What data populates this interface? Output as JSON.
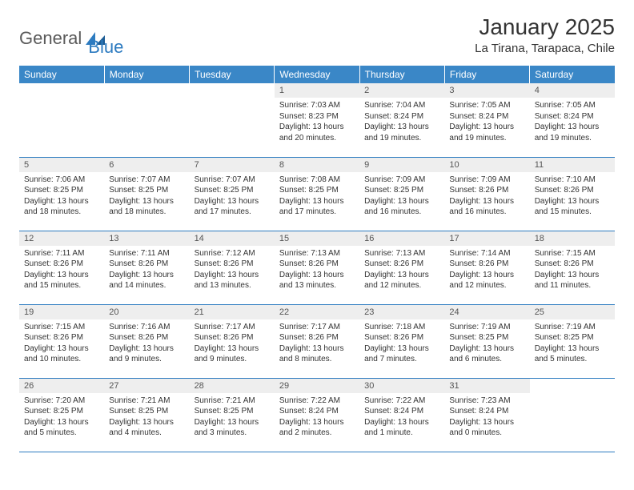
{
  "brand": {
    "general": "General",
    "blue": "Blue"
  },
  "title": "January 2025",
  "location": "La Tirana, Tarapaca, Chile",
  "colors": {
    "header_bg": "#3a87c7",
    "header_text": "#ffffff",
    "daynum_bg": "#eeeeee",
    "row_border": "#2d7bc0",
    "logo_gray": "#5a5a5a",
    "logo_blue": "#2d7bc0",
    "page_bg": "#ffffff",
    "text": "#333333"
  },
  "weekdays": [
    "Sunday",
    "Monday",
    "Tuesday",
    "Wednesday",
    "Thursday",
    "Friday",
    "Saturday"
  ],
  "weeks": [
    [
      null,
      null,
      null,
      {
        "n": "1",
        "sunrise": "7:03 AM",
        "sunset": "8:23 PM",
        "daylight": "13 hours and 20 minutes."
      },
      {
        "n": "2",
        "sunrise": "7:04 AM",
        "sunset": "8:24 PM",
        "daylight": "13 hours and 19 minutes."
      },
      {
        "n": "3",
        "sunrise": "7:05 AM",
        "sunset": "8:24 PM",
        "daylight": "13 hours and 19 minutes."
      },
      {
        "n": "4",
        "sunrise": "7:05 AM",
        "sunset": "8:24 PM",
        "daylight": "13 hours and 19 minutes."
      }
    ],
    [
      {
        "n": "5",
        "sunrise": "7:06 AM",
        "sunset": "8:25 PM",
        "daylight": "13 hours and 18 minutes."
      },
      {
        "n": "6",
        "sunrise": "7:07 AM",
        "sunset": "8:25 PM",
        "daylight": "13 hours and 18 minutes."
      },
      {
        "n": "7",
        "sunrise": "7:07 AM",
        "sunset": "8:25 PM",
        "daylight": "13 hours and 17 minutes."
      },
      {
        "n": "8",
        "sunrise": "7:08 AM",
        "sunset": "8:25 PM",
        "daylight": "13 hours and 17 minutes."
      },
      {
        "n": "9",
        "sunrise": "7:09 AM",
        "sunset": "8:25 PM",
        "daylight": "13 hours and 16 minutes."
      },
      {
        "n": "10",
        "sunrise": "7:09 AM",
        "sunset": "8:26 PM",
        "daylight": "13 hours and 16 minutes."
      },
      {
        "n": "11",
        "sunrise": "7:10 AM",
        "sunset": "8:26 PM",
        "daylight": "13 hours and 15 minutes."
      }
    ],
    [
      {
        "n": "12",
        "sunrise": "7:11 AM",
        "sunset": "8:26 PM",
        "daylight": "13 hours and 15 minutes."
      },
      {
        "n": "13",
        "sunrise": "7:11 AM",
        "sunset": "8:26 PM",
        "daylight": "13 hours and 14 minutes."
      },
      {
        "n": "14",
        "sunrise": "7:12 AM",
        "sunset": "8:26 PM",
        "daylight": "13 hours and 13 minutes."
      },
      {
        "n": "15",
        "sunrise": "7:13 AM",
        "sunset": "8:26 PM",
        "daylight": "13 hours and 13 minutes."
      },
      {
        "n": "16",
        "sunrise": "7:13 AM",
        "sunset": "8:26 PM",
        "daylight": "13 hours and 12 minutes."
      },
      {
        "n": "17",
        "sunrise": "7:14 AM",
        "sunset": "8:26 PM",
        "daylight": "13 hours and 12 minutes."
      },
      {
        "n": "18",
        "sunrise": "7:15 AM",
        "sunset": "8:26 PM",
        "daylight": "13 hours and 11 minutes."
      }
    ],
    [
      {
        "n": "19",
        "sunrise": "7:15 AM",
        "sunset": "8:26 PM",
        "daylight": "13 hours and 10 minutes."
      },
      {
        "n": "20",
        "sunrise": "7:16 AM",
        "sunset": "8:26 PM",
        "daylight": "13 hours and 9 minutes."
      },
      {
        "n": "21",
        "sunrise": "7:17 AM",
        "sunset": "8:26 PM",
        "daylight": "13 hours and 9 minutes."
      },
      {
        "n": "22",
        "sunrise": "7:17 AM",
        "sunset": "8:26 PM",
        "daylight": "13 hours and 8 minutes."
      },
      {
        "n": "23",
        "sunrise": "7:18 AM",
        "sunset": "8:26 PM",
        "daylight": "13 hours and 7 minutes."
      },
      {
        "n": "24",
        "sunrise": "7:19 AM",
        "sunset": "8:25 PM",
        "daylight": "13 hours and 6 minutes."
      },
      {
        "n": "25",
        "sunrise": "7:19 AM",
        "sunset": "8:25 PM",
        "daylight": "13 hours and 5 minutes."
      }
    ],
    [
      {
        "n": "26",
        "sunrise": "7:20 AM",
        "sunset": "8:25 PM",
        "daylight": "13 hours and 5 minutes."
      },
      {
        "n": "27",
        "sunrise": "7:21 AM",
        "sunset": "8:25 PM",
        "daylight": "13 hours and 4 minutes."
      },
      {
        "n": "28",
        "sunrise": "7:21 AM",
        "sunset": "8:25 PM",
        "daylight": "13 hours and 3 minutes."
      },
      {
        "n": "29",
        "sunrise": "7:22 AM",
        "sunset": "8:24 PM",
        "daylight": "13 hours and 2 minutes."
      },
      {
        "n": "30",
        "sunrise": "7:22 AM",
        "sunset": "8:24 PM",
        "daylight": "13 hours and 1 minute."
      },
      {
        "n": "31",
        "sunrise": "7:23 AM",
        "sunset": "8:24 PM",
        "daylight": "13 hours and 0 minutes."
      },
      null
    ]
  ],
  "labels": {
    "sunrise": "Sunrise:",
    "sunset": "Sunset:",
    "daylight": "Daylight:"
  }
}
